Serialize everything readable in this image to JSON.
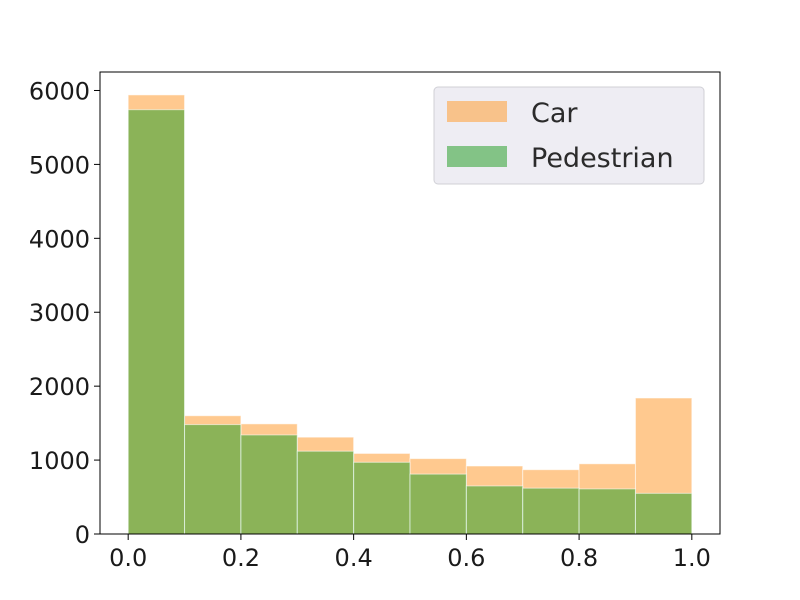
{
  "chart_data": {
    "type": "bar",
    "subtype": "overlapping-histogram",
    "title": "",
    "xlabel": "",
    "ylabel": "",
    "bin_edges": [
      0.0,
      0.1,
      0.2,
      0.3,
      0.4,
      0.5,
      0.6,
      0.7,
      0.8,
      0.9,
      1.0
    ],
    "xlim": [
      -0.05,
      1.05
    ],
    "ylim": [
      0,
      6250
    ],
    "x_ticks": [
      "0.0",
      "0.2",
      "0.4",
      "0.6",
      "0.8",
      "1.0"
    ],
    "x_tick_values": [
      0.0,
      0.2,
      0.4,
      0.6,
      0.8,
      1.0
    ],
    "y_ticks": [
      "0",
      "1000",
      "2000",
      "3000",
      "4000",
      "5000",
      "6000"
    ],
    "y_tick_values": [
      0,
      1000,
      2000,
      3000,
      4000,
      5000,
      6000
    ],
    "grid": false,
    "legend_position": "top-right",
    "series": [
      {
        "name": "Car",
        "color": "#ffa545",
        "opacity": 0.6,
        "values": [
          5940,
          1600,
          1490,
          1310,
          1090,
          1020,
          920,
          870,
          950,
          1840
        ]
      },
      {
        "name": "Pedestrian",
        "color": "#2ca02c",
        "opacity": 0.55,
        "values": [
          5740,
          1480,
          1340,
          1120,
          970,
          810,
          650,
          620,
          610,
          550
        ]
      }
    ]
  }
}
